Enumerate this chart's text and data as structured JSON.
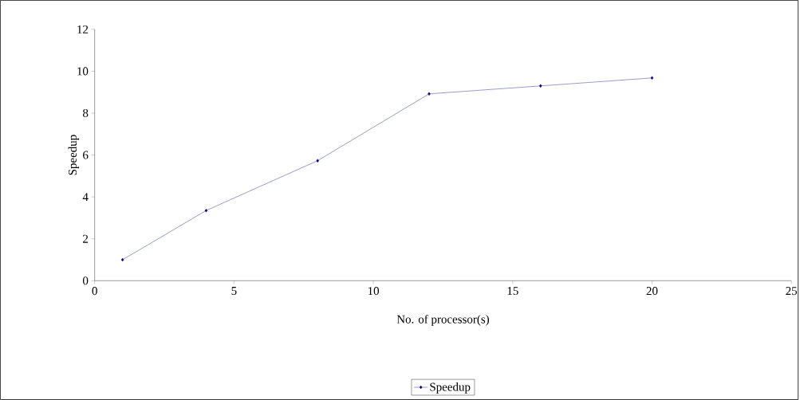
{
  "chart_data": {
    "type": "line",
    "xlabel": "No. of processor(s)",
    "ylabel": "Speedup",
    "x": [
      1,
      4,
      8,
      12,
      16,
      20
    ],
    "series": [
      {
        "name": "Speedup",
        "color": "#000080",
        "values": [
          1.0,
          3.35,
          5.73,
          8.92,
          9.3,
          9.68
        ]
      }
    ],
    "xlim": [
      0,
      25
    ],
    "xticks": [
      0,
      5,
      10,
      15,
      20,
      25
    ],
    "ylim": [
      0,
      12
    ],
    "yticks": [
      0,
      2,
      4,
      6,
      8,
      10,
      12
    ],
    "grid": false,
    "legend": "bottom",
    "marker": "diamond",
    "line_style": "solid"
  }
}
